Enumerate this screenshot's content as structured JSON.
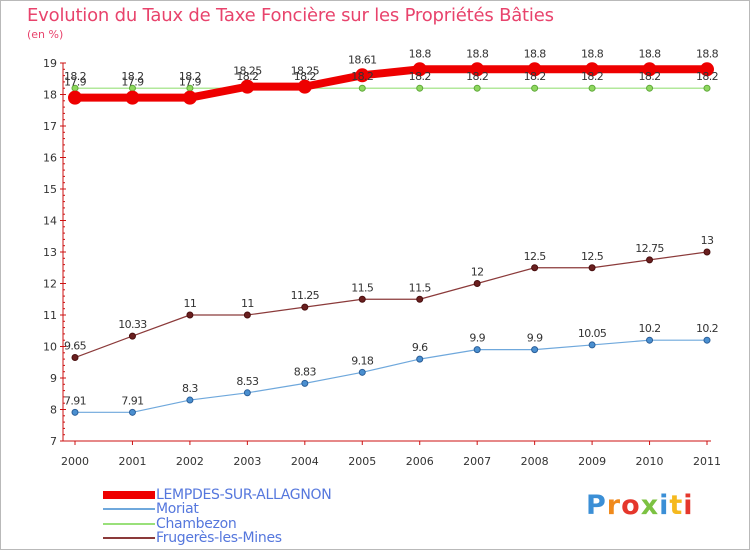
{
  "title": "Evolution du Taux de Taxe Foncière sur les Propriétés Bâties",
  "subtitle": "(en %)",
  "brand": {
    "letters": [
      "P",
      "r",
      "o",
      "x",
      "i",
      "t",
      "i"
    ],
    "colors": [
      "#3b8fd6",
      "#f08a1c",
      "#e5372c",
      "#7cc242",
      "#3b8fd6",
      "#f5b91e",
      "#e5372c"
    ]
  },
  "chart_data": {
    "type": "line",
    "title": "Evolution du Taux de Taxe Foncière sur les Propriétés Bâties",
    "ylabel": "(en %)",
    "xlabel": "",
    "grid": false,
    "legend_position": "bottom-left",
    "x": [
      "2000",
      "2001",
      "2002",
      "2003",
      "2004",
      "2005",
      "2006",
      "2007",
      "2008",
      "2009",
      "2010",
      "2011"
    ],
    "ylim": [
      7,
      19
    ],
    "yticks": [
      7,
      8,
      9,
      10,
      11,
      12,
      13,
      14,
      15,
      16,
      17,
      18,
      19
    ],
    "series": [
      {
        "name": "LEMPDES-SUR-ALLAGNON",
        "color": "#ee0000",
        "values": [
          17.9,
          17.9,
          17.9,
          18.25,
          18.25,
          18.61,
          18.8,
          18.8,
          18.8,
          18.8,
          18.8,
          18.8
        ],
        "labels": [
          "17.9",
          "17.9",
          "17.9",
          "18.25",
          "18.25",
          "18.61",
          "18.8",
          "18.8",
          "18.8",
          "18.8",
          "18.8",
          "18.8"
        ]
      },
      {
        "name": "Moriat",
        "color": "#6fa8dc",
        "values": [
          7.91,
          7.91,
          8.3,
          8.53,
          8.83,
          9.18,
          9.6,
          9.9,
          9.9,
          10.05,
          10.2,
          10.2
        ],
        "labels": [
          "7.91",
          "7.91",
          "8.3",
          "8.53",
          "8.83",
          "9.18",
          "9.6",
          "9.9",
          "9.9",
          "10.05",
          "10.2",
          "10.2"
        ]
      },
      {
        "name": "Chambezon",
        "color": "#99e07a",
        "values": [
          18.2,
          18.2,
          18.2,
          18.2,
          18.2,
          18.2,
          18.2,
          18.2,
          18.2,
          18.2,
          18.2,
          18.2
        ],
        "labels": [
          "18.2",
          "18.2",
          "18.2",
          "18.2",
          "18.2",
          "18.2",
          "18.2",
          "18.2",
          "18.2",
          "18.2",
          "18.2",
          "18.2"
        ]
      },
      {
        "name": "Frugerès-les-Mines",
        "color": "#8b3a3a",
        "values": [
          9.65,
          10.33,
          11,
          11,
          11.25,
          11.5,
          11.5,
          12,
          12.5,
          12.5,
          12.75,
          13
        ],
        "labels": [
          "9.65",
          "10.33",
          "11",
          "11",
          "11.25",
          "11.5",
          "11.5",
          "12",
          "12.5",
          "12.5",
          "12.75",
          "13"
        ]
      }
    ]
  }
}
